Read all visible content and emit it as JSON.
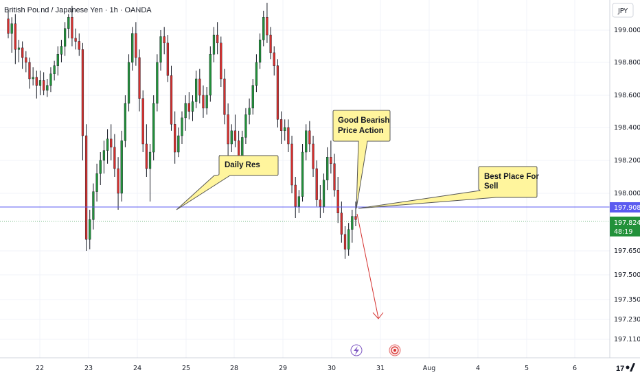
{
  "header": {
    "symbol_title": "British Pound / Japanese Yen · 1h · OANDA"
  },
  "price_axis": {
    "currency": "JPY",
    "ticks": [
      "199.000",
      "198.800",
      "198.600",
      "198.400",
      "198.200",
      "198.000",
      "197.650",
      "197.500",
      "197.350",
      "197.230",
      "197.110"
    ]
  },
  "time_axis": {
    "ticks": [
      "22",
      "23",
      "24",
      "25",
      "28",
      "29",
      "30",
      "31",
      "Aug",
      "4",
      "5",
      "6"
    ]
  },
  "price_labels": {
    "resistance": {
      "value": "197.908",
      "color": "#5b5bf0"
    },
    "last": {
      "value": "197.824",
      "countdown": "48:19",
      "color": "#22913a"
    }
  },
  "annotations": [
    {
      "id": "daily-res",
      "text": [
        "Daily Res"
      ]
    },
    {
      "id": "good-bearish",
      "text": [
        "Good Bearish",
        "Price Action"
      ]
    },
    {
      "id": "best-place",
      "text": [
        "Best Place For",
        "Sell"
      ]
    }
  ],
  "icons": [
    "lightning-icon",
    "event-target-icon"
  ],
  "colors": {
    "bull": "#22913a",
    "bear": "#d5302e",
    "callout_fill": "#fff59d",
    "arrow": "#d5302e"
  },
  "chart_data": {
    "type": "candlestick",
    "title": "British Pound / Japanese Yen · 1h · OANDA",
    "ylim": [
      197.05,
      199.18
    ],
    "resistance_level": 197.908,
    "last_price": 197.824,
    "note_levels": [
      197.908
    ],
    "candles": [
      [
        199.07,
        199.13,
        198.95,
        198.98
      ],
      [
        198.98,
        199.08,
        198.86,
        199.04
      ],
      [
        199.04,
        199.1,
        198.79,
        198.88
      ],
      [
        198.88,
        198.94,
        198.8,
        198.89
      ],
      [
        198.89,
        198.93,
        198.76,
        198.83
      ],
      [
        198.83,
        198.87,
        198.74,
        198.8
      ],
      [
        198.8,
        198.83,
        198.64,
        198.7
      ],
      [
        198.7,
        198.77,
        198.66,
        198.71
      ],
      [
        198.71,
        198.75,
        198.58,
        198.66
      ],
      [
        198.66,
        198.75,
        198.6,
        198.69
      ],
      [
        198.69,
        198.74,
        198.6,
        198.63
      ],
      [
        198.63,
        198.7,
        198.59,
        198.66
      ],
      [
        198.66,
        198.77,
        198.62,
        198.73
      ],
      [
        198.73,
        198.81,
        198.69,
        198.78
      ],
      [
        198.78,
        198.9,
        198.72,
        198.85
      ],
      [
        198.85,
        198.94,
        198.8,
        198.9
      ],
      [
        198.9,
        199.05,
        198.84,
        199.01
      ],
      [
        199.01,
        199.1,
        198.95,
        199.08
      ],
      [
        199.08,
        199.15,
        198.9,
        198.95
      ],
      [
        198.95,
        199.01,
        198.88,
        198.93
      ],
      [
        198.93,
        198.98,
        198.84,
        198.88
      ],
      [
        198.88,
        198.92,
        198.2,
        198.35
      ],
      [
        198.35,
        198.42,
        197.65,
        197.72
      ],
      [
        197.72,
        197.9,
        197.66,
        197.84
      ],
      [
        197.84,
        198.06,
        197.78,
        198.01
      ],
      [
        198.01,
        198.18,
        197.95,
        198.12
      ],
      [
        198.12,
        198.25,
        198.05,
        198.2
      ],
      [
        198.2,
        198.32,
        198.12,
        198.26
      ],
      [
        198.26,
        198.39,
        198.18,
        198.33
      ],
      [
        198.33,
        198.42,
        198.2,
        198.28
      ],
      [
        198.28,
        198.36,
        198.1,
        198.15
      ],
      [
        198.15,
        198.22,
        197.9,
        198.0
      ],
      [
        198.0,
        198.38,
        197.95,
        198.32
      ],
      [
        198.32,
        198.6,
        198.28,
        198.55
      ],
      [
        198.55,
        198.85,
        198.5,
        198.8
      ],
      [
        198.8,
        199.02,
        198.75,
        198.98
      ],
      [
        198.98,
        199.05,
        198.78,
        198.83
      ],
      [
        198.83,
        198.88,
        198.5,
        198.58
      ],
      [
        198.58,
        198.63,
        198.25,
        198.3
      ],
      [
        198.3,
        198.42,
        198.1,
        198.15
      ],
      [
        198.15,
        198.3,
        197.95,
        198.25
      ],
      [
        198.25,
        198.6,
        198.2,
        198.55
      ],
      [
        198.55,
        198.85,
        198.5,
        198.8
      ],
      [
        198.8,
        199.0,
        198.75,
        198.96
      ],
      [
        198.96,
        199.02,
        198.85,
        198.92
      ],
      [
        198.92,
        198.97,
        198.68,
        198.72
      ],
      [
        198.72,
        198.78,
        198.38,
        198.42
      ],
      [
        198.42,
        198.5,
        198.18,
        198.25
      ],
      [
        198.25,
        198.4,
        198.22,
        198.35
      ],
      [
        198.35,
        198.5,
        198.3,
        198.46
      ],
      [
        198.46,
        198.6,
        198.38,
        198.55
      ],
      [
        198.55,
        198.62,
        198.45,
        198.5
      ],
      [
        198.5,
        198.6,
        198.44,
        198.56
      ],
      [
        198.56,
        198.75,
        198.52,
        198.7
      ],
      [
        198.7,
        198.76,
        198.55,
        198.6
      ],
      [
        198.6,
        198.66,
        198.46,
        198.52
      ],
      [
        198.52,
        198.65,
        198.48,
        198.6
      ],
      [
        198.6,
        198.9,
        198.56,
        198.85
      ],
      [
        198.85,
        199.02,
        198.8,
        198.97
      ],
      [
        198.97,
        199.05,
        198.85,
        198.92
      ],
      [
        198.92,
        198.96,
        198.65,
        198.7
      ],
      [
        198.7,
        198.76,
        198.42,
        198.48
      ],
      [
        198.48,
        198.55,
        198.22,
        198.3
      ],
      [
        198.3,
        198.42,
        198.25,
        198.38
      ],
      [
        198.38,
        198.48,
        198.28,
        198.32
      ],
      [
        198.32,
        198.38,
        198.18,
        198.22
      ],
      [
        198.22,
        198.38,
        198.18,
        198.34
      ],
      [
        198.34,
        198.52,
        198.3,
        198.48
      ],
      [
        198.48,
        198.58,
        198.42,
        198.52
      ],
      [
        198.52,
        198.7,
        198.48,
        198.66
      ],
      [
        198.66,
        198.85,
        198.62,
        198.8
      ],
      [
        198.8,
        198.98,
        198.76,
        198.94
      ],
      [
        198.94,
        199.12,
        198.9,
        199.08
      ],
      [
        199.08,
        199.17,
        198.92,
        198.97
      ],
      [
        198.97,
        199.02,
        198.82,
        198.86
      ],
      [
        198.86,
        198.9,
        198.72,
        198.78
      ],
      [
        198.78,
        198.82,
        198.4,
        198.45
      ],
      [
        198.45,
        198.5,
        198.3,
        198.38
      ],
      [
        198.38,
        198.45,
        198.32,
        198.4
      ],
      [
        198.4,
        198.45,
        198.25,
        198.3
      ],
      [
        198.3,
        198.35,
        198.0,
        198.05
      ],
      [
        198.05,
        198.1,
        197.85,
        197.92
      ],
      [
        197.92,
        198.02,
        197.88,
        197.98
      ],
      [
        197.98,
        198.3,
        197.95,
        198.25
      ],
      [
        198.25,
        198.42,
        198.2,
        198.38
      ],
      [
        198.38,
        198.44,
        198.25,
        198.3
      ],
      [
        198.3,
        198.35,
        198.1,
        198.15
      ],
      [
        198.15,
        198.2,
        197.92,
        197.96
      ],
      [
        197.96,
        198.05,
        197.85,
        197.92
      ],
      [
        197.92,
        198.12,
        197.88,
        198.08
      ],
      [
        198.08,
        198.28,
        198.02,
        198.22
      ],
      [
        198.22,
        198.32,
        198.12,
        198.18
      ],
      [
        198.18,
        198.24,
        197.98,
        198.02
      ],
      [
        198.02,
        198.1,
        197.82,
        197.88
      ],
      [
        197.88,
        197.95,
        197.7,
        197.75
      ],
      [
        197.75,
        197.8,
        197.6,
        197.66
      ],
      [
        197.66,
        197.82,
        197.62,
        197.78
      ],
      [
        197.78,
        197.9,
        197.7,
        197.86
      ],
      [
        197.86,
        197.95,
        197.8,
        197.84
      ]
    ]
  }
}
